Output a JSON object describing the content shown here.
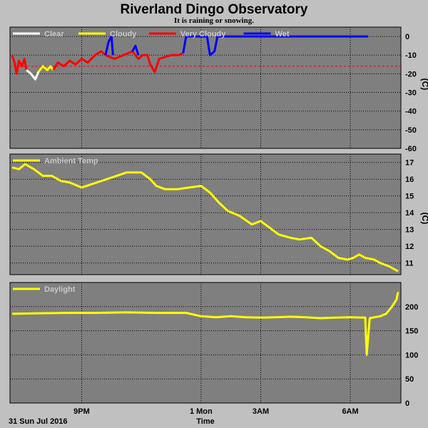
{
  "title": "Riverland Dingo Observatory",
  "subtitle": "It is raining or snowing.",
  "date_label": "31 Sun Jul 2016",
  "x_axis_label": "Time",
  "x_ticks": [
    "9PM",
    "1 Mon",
    "3AM",
    "6AM"
  ],
  "colors": {
    "background": "#c0c0c0",
    "plot_bg": "#7f7f7f",
    "grid": "#000000",
    "clear": "#ffffff",
    "cloudy": "#ffff00",
    "very_cloudy": "#ff0000",
    "wet": "#0000ff",
    "threshold": "#ff0000",
    "ambient": "#ffff00",
    "daylight": "#ffff00"
  },
  "chart_data": [
    {
      "type": "line",
      "id": "sky",
      "unit_label": "(C)",
      "ylim": [
        -60,
        5
      ],
      "y_ticks": [
        "0",
        "-10",
        "-20",
        "-30",
        "-40",
        "-50",
        "-60"
      ],
      "y_tick_values": [
        0,
        -10,
        -20,
        -30,
        -40,
        -50,
        -60
      ],
      "legend": [
        {
          "label": "Clear",
          "color": "#ffffff"
        },
        {
          "label": "Cloudy",
          "color": "#ffff00"
        },
        {
          "label": "Very Cloudy",
          "color": "#ff0000"
        },
        {
          "label": "Wet",
          "color": "#0000ff"
        }
      ],
      "threshold": -16,
      "x_range": [
        18.67,
        6.6
      ],
      "series": [
        {
          "color": "#ff0000",
          "points": [
            [
              18.67,
              -10
            ],
            [
              18.75,
              -14
            ],
            [
              18.82,
              -20
            ],
            [
              18.9,
              -13
            ],
            [
              19.0,
              -16
            ],
            [
              19.08,
              -12
            ],
            [
              19.15,
              -18
            ]
          ]
        },
        {
          "color": "#ffffff",
          "points": [
            [
              19.15,
              -18
            ],
            [
              19.3,
              -20
            ],
            [
              19.45,
              -23
            ],
            [
              19.55,
              -19
            ]
          ]
        },
        {
          "color": "#ffff00",
          "points": [
            [
              19.55,
              -19
            ],
            [
              19.7,
              -16
            ],
            [
              19.85,
              -18
            ],
            [
              19.95,
              -16
            ],
            [
              20.05,
              -18
            ]
          ]
        },
        {
          "color": "#ff0000",
          "points": [
            [
              20.05,
              -18
            ],
            [
              20.2,
              -14
            ],
            [
              20.4,
              -16
            ],
            [
              20.6,
              -13
            ],
            [
              20.8,
              -15
            ],
            [
              21.0,
              -12
            ],
            [
              21.2,
              -14
            ],
            [
              21.45,
              -10
            ],
            [
              21.65,
              -8
            ],
            [
              21.8,
              -10
            ],
            [
              22.1,
              -12
            ],
            [
              22.4,
              -10
            ],
            [
              22.7,
              -8
            ],
            [
              22.9,
              -12
            ],
            [
              23.05,
              -10
            ],
            [
              23.2,
              -10
            ],
            [
              23.3,
              -15
            ],
            [
              23.45,
              -19
            ],
            [
              23.6,
              -12
            ],
            [
              23.8,
              -11
            ],
            [
              24.0,
              -10
            ],
            [
              24.25,
              -10
            ],
            [
              24.4,
              -9
            ]
          ]
        },
        {
          "color": "#0000ff",
          "points": [
            [
              21.8,
              -10
            ],
            [
              21.9,
              -3
            ],
            [
              22.0,
              0
            ],
            [
              22.05,
              -10
            ]
          ]
        },
        {
          "color": "#0000ff",
          "points": [
            [
              22.7,
              -8
            ],
            [
              22.8,
              -5
            ],
            [
              22.9,
              -10
            ]
          ]
        },
        {
          "color": "#0000ff",
          "points": [
            [
              24.4,
              -9
            ],
            [
              24.5,
              0
            ],
            [
              25.2,
              0
            ],
            [
              25.3,
              -10
            ],
            [
              25.45,
              -8
            ],
            [
              25.55,
              0
            ],
            [
              30.6,
              0
            ]
          ]
        }
      ]
    },
    {
      "type": "line",
      "id": "ambient",
      "unit_label": "(C)",
      "ylim": [
        10.3,
        17.5
      ],
      "y_ticks": [
        "17",
        "16",
        "15",
        "14",
        "13",
        "12",
        "11"
      ],
      "y_tick_values": [
        17,
        16,
        15,
        14,
        13,
        12,
        11
      ],
      "legend": [
        {
          "label": "Ambient Temp",
          "color": "#ffff00"
        }
      ],
      "series": [
        {
          "name": "Ambient Temp",
          "color": "#ffff00",
          "points": [
            [
              18.67,
              16.7
            ],
            [
              18.9,
              16.6
            ],
            [
              19.1,
              16.9
            ],
            [
              19.4,
              16.6
            ],
            [
              19.7,
              16.2
            ],
            [
              20.0,
              16.2
            ],
            [
              20.3,
              15.9
            ],
            [
              20.6,
              15.8
            ],
            [
              21.0,
              15.5
            ],
            [
              21.5,
              15.8
            ],
            [
              22.0,
              16.1
            ],
            [
              22.5,
              16.4
            ],
            [
              23.0,
              16.4
            ],
            [
              23.3,
              16.0
            ],
            [
              23.5,
              15.6
            ],
            [
              23.8,
              15.4
            ],
            [
              24.2,
              15.4
            ],
            [
              24.6,
              15.5
            ],
            [
              25.0,
              15.6
            ],
            [
              25.3,
              15.2
            ],
            [
              25.6,
              14.6
            ],
            [
              25.9,
              14.1
            ],
            [
              26.3,
              13.8
            ],
            [
              26.7,
              13.3
            ],
            [
              27.0,
              13.5
            ],
            [
              27.3,
              13.1
            ],
            [
              27.6,
              12.7
            ],
            [
              28.0,
              12.5
            ],
            [
              28.3,
              12.4
            ],
            [
              28.7,
              12.5
            ],
            [
              29.0,
              12.0
            ],
            [
              29.3,
              11.7
            ],
            [
              29.6,
              11.3
            ],
            [
              29.9,
              11.2
            ],
            [
              30.1,
              11.3
            ],
            [
              30.3,
              11.5
            ],
            [
              30.5,
              11.3
            ],
            [
              30.8,
              11.2
            ],
            [
              31.0,
              11.0
            ],
            [
              31.3,
              10.8
            ],
            [
              31.5,
              10.6
            ],
            [
              31.6,
              10.5
            ]
          ]
        }
      ]
    },
    {
      "type": "line",
      "id": "daylight",
      "unit_label": "",
      "ylim": [
        0,
        250
      ],
      "y_ticks": [
        "200",
        "150",
        "100",
        "50",
        "0"
      ],
      "y_tick_values": [
        200,
        150,
        100,
        50,
        0
      ],
      "legend": [
        {
          "label": "Daylight",
          "color": "#ffff00"
        }
      ],
      "series": [
        {
          "name": "Daylight",
          "color": "#ffff00",
          "points": [
            [
              18.67,
              185
            ],
            [
              19.5,
              186
            ],
            [
              20.5,
              187
            ],
            [
              21.5,
              187
            ],
            [
              22.5,
              188
            ],
            [
              23.5,
              187
            ],
            [
              24.5,
              187
            ],
            [
              25.0,
              180
            ],
            [
              25.5,
              178
            ],
            [
              26.0,
              180
            ],
            [
              26.5,
              178
            ],
            [
              27.0,
              177
            ],
            [
              27.5,
              178
            ],
            [
              28.0,
              179
            ],
            [
              28.5,
              178
            ],
            [
              29.0,
              176
            ],
            [
              29.5,
              177
            ],
            [
              30.0,
              178
            ],
            [
              30.5,
              177
            ],
            [
              30.55,
              100
            ],
            [
              30.65,
              176
            ],
            [
              31.0,
              180
            ],
            [
              31.2,
              185
            ],
            [
              31.4,
              200
            ],
            [
              31.55,
              215
            ],
            [
              31.6,
              230
            ]
          ]
        }
      ]
    }
  ]
}
